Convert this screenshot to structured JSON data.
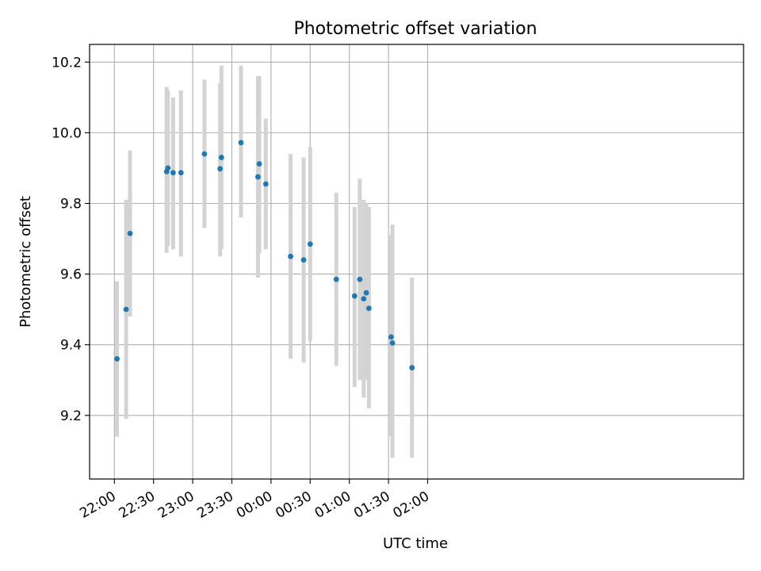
{
  "chart_data": {
    "type": "scatter",
    "title": "Photometric offset variation",
    "xlabel": "UTC time",
    "ylabel": "Photometric offset",
    "grid": true,
    "legend": "none",
    "xlim": [
      -19,
      482
    ],
    "ylim": [
      9.02,
      10.25
    ],
    "x_tick_minutes": [
      0,
      30,
      60,
      90,
      120,
      150,
      180,
      210,
      240
    ],
    "x_tick_labels": [
      "22:00",
      "22:30",
      "23:00",
      "23:30",
      "00:00",
      "00:30",
      "01:00",
      "01:30",
      "02:00"
    ],
    "y_ticks": [
      9.2,
      9.4,
      9.6,
      9.8,
      10.0,
      10.2
    ],
    "y_tick_labels": [
      "9.2",
      "9.4",
      "9.6",
      "9.8",
      "10.0",
      "10.2"
    ],
    "colors": {
      "point": "#1f77b4",
      "errorbar": "#d3d3d3",
      "grid": "#b0b0b0"
    },
    "points": [
      {
        "t": "22:02",
        "y": 9.36,
        "lo": 9.14,
        "hi": 9.58
      },
      {
        "t": "22:09",
        "y": 9.5,
        "lo": 9.19,
        "hi": 9.81
      },
      {
        "t": "22:12",
        "y": 9.715,
        "lo": 9.48,
        "hi": 9.95
      },
      {
        "t": "22:40",
        "y": 9.89,
        "lo": 9.66,
        "hi": 10.13
      },
      {
        "t": "22:41",
        "y": 9.9,
        "lo": 9.68,
        "hi": 10.12
      },
      {
        "t": "22:45",
        "y": 9.887,
        "lo": 9.67,
        "hi": 10.1
      },
      {
        "t": "22:51",
        "y": 9.887,
        "lo": 9.65,
        "hi": 10.12
      },
      {
        "t": "23:09",
        "y": 9.94,
        "lo": 9.73,
        "hi": 10.15
      },
      {
        "t": "23:21",
        "y": 9.898,
        "lo": 9.65,
        "hi": 10.14
      },
      {
        "t": "23:22",
        "y": 9.93,
        "lo": 9.67,
        "hi": 10.19
      },
      {
        "t": "23:37",
        "y": 9.972,
        "lo": 9.76,
        "hi": 10.19
      },
      {
        "t": "23:50",
        "y": 9.875,
        "lo": 9.59,
        "hi": 10.16
      },
      {
        "t": "23:51",
        "y": 9.912,
        "lo": 9.66,
        "hi": 10.16
      },
      {
        "t": "23:56",
        "y": 9.855,
        "lo": 9.67,
        "hi": 10.04
      },
      {
        "t": "00:15",
        "y": 9.65,
        "lo": 9.36,
        "hi": 9.94
      },
      {
        "t": "00:25",
        "y": 9.64,
        "lo": 9.35,
        "hi": 9.93
      },
      {
        "t": "00:30",
        "y": 9.685,
        "lo": 9.41,
        "hi": 9.96
      },
      {
        "t": "00:50",
        "y": 9.585,
        "lo": 9.34,
        "hi": 9.83
      },
      {
        "t": "01:04",
        "y": 9.538,
        "lo": 9.28,
        "hi": 9.79
      },
      {
        "t": "01:08",
        "y": 9.585,
        "lo": 9.3,
        "hi": 9.87
      },
      {
        "t": "01:11",
        "y": 9.53,
        "lo": 9.25,
        "hi": 9.81
      },
      {
        "t": "01:13",
        "y": 9.547,
        "lo": 9.3,
        "hi": 9.8
      },
      {
        "t": "01:15",
        "y": 9.503,
        "lo": 9.22,
        "hi": 9.79
      },
      {
        "t": "01:32",
        "y": 9.422,
        "lo": 9.14,
        "hi": 9.71
      },
      {
        "t": "01:33",
        "y": 9.405,
        "lo": 9.08,
        "hi": 9.74
      },
      {
        "t": "01:48",
        "y": 9.335,
        "lo": 9.08,
        "hi": 9.59
      }
    ]
  }
}
